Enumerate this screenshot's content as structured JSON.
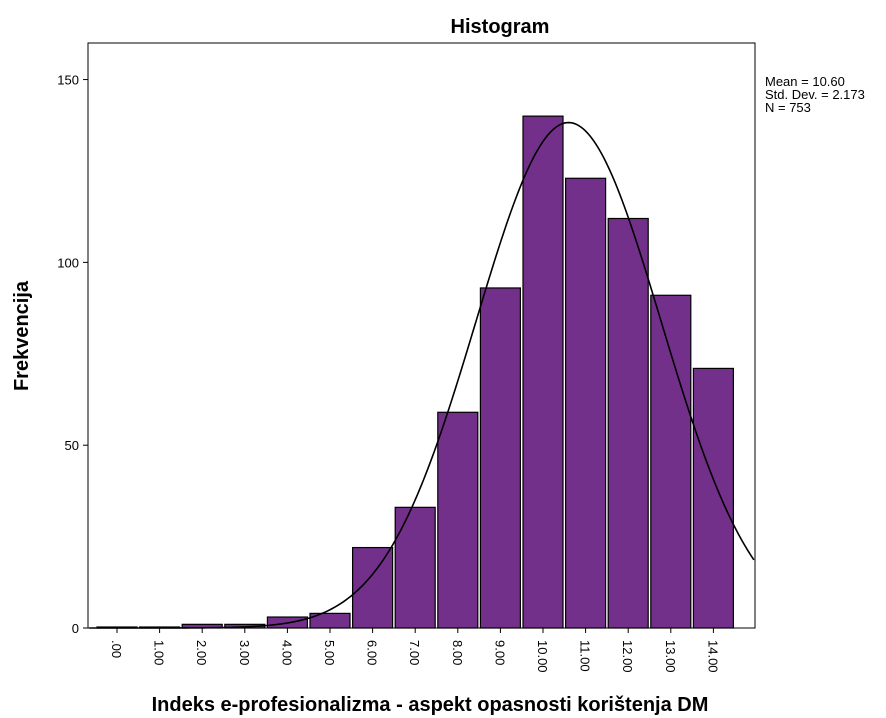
{
  "chart_data": {
    "type": "bar",
    "title": "Histogram",
    "xlabel": "Indeks e-profesionalizma - aspekt opasnosti korištenja DM",
    "ylabel": "Frekvencija",
    "categories": [
      ".00",
      "1.00",
      "2.00",
      "3.00",
      "4.00",
      "5.00",
      "6.00",
      "7.00",
      "8.00",
      "9.00",
      "10.00",
      "11.00",
      "12.00",
      "13.00",
      "14.00"
    ],
    "values": [
      0,
      0,
      1,
      1,
      3,
      4,
      22,
      33,
      59,
      93,
      140,
      123,
      112,
      91,
      71
    ],
    "ylim": [
      0,
      160
    ],
    "yticks": [
      0,
      50,
      100,
      150
    ],
    "normal_curve": {
      "mean": 10.6,
      "std": 2.173,
      "n": 753,
      "bin_width": 1
    },
    "stats": [
      "Mean = 10.60",
      "Std. Dev. = 2.173",
      "N = 753"
    ],
    "grid": false,
    "bar_color": "#73308a",
    "bar_edge_color": "#000000",
    "curve_color": "#000000"
  }
}
